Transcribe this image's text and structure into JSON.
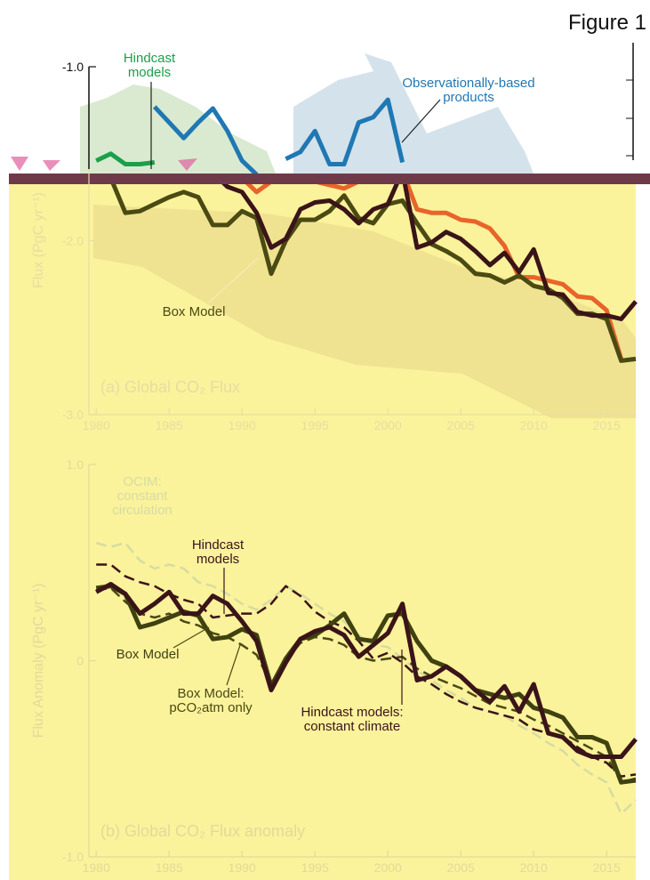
{
  "figure_title": "Figure 1",
  "chart_data": [
    {
      "type": "line",
      "title": "(a) Global CO₂ Flux",
      "y_label": "Flux (PgC yr⁻¹)",
      "x": [
        1980,
        1981,
        1982,
        1983,
        1984,
        1985,
        1986,
        1987,
        1988,
        1989,
        1990,
        1991,
        1992,
        1993,
        1994,
        1995,
        1996,
        1997,
        1998,
        1999,
        2000,
        2001,
        2002,
        2003,
        2004,
        2005,
        2006,
        2007,
        2008,
        2009,
        2010,
        2011,
        2012,
        2013,
        2014,
        2015,
        2016,
        2017
      ],
      "xlim": [
        1979.5,
        2017
      ],
      "xticks": [
        1980,
        1985,
        1990,
        1995,
        2000,
        2005,
        2010,
        2015
      ],
      "ylim": [
        -3,
        -1
      ],
      "yticks": [
        {
          "value": -1,
          "label": "-1.0"
        },
        {
          "value": -2,
          "label": "-2.0"
        },
        {
          "value": -3,
          "label": "-3.0"
        }
      ],
      "series": [
        {
          "name": "Hindcast models",
          "color": "#1aa04a",
          "style": "solid",
          "values": [
            -1.54,
            -1.5,
            -1.56,
            -1.56,
            -1.55,
            null,
            null,
            null,
            null,
            null,
            null,
            null,
            null,
            null,
            null,
            null,
            null,
            null,
            null,
            null,
            null,
            null,
            null,
            null,
            null,
            null,
            null,
            null,
            null,
            null,
            null,
            null,
            null,
            null,
            null,
            null,
            null,
            null
          ]
        },
        {
          "name": "Observationally-based products",
          "color": "#1f78b4",
          "style": "solid",
          "values": [
            null,
            null,
            null,
            null,
            -1.23,
            -1.32,
            -1.41,
            -1.32,
            -1.24,
            -1.37,
            -1.54,
            -1.62,
            null,
            -1.53,
            -1.49,
            -1.37,
            -1.56,
            -1.56,
            -1.32,
            -1.29,
            -1.19,
            -1.55,
            null,
            null,
            null,
            null,
            null,
            null,
            null,
            null,
            null,
            null,
            null,
            null,
            null,
            null,
            null,
            null
          ]
        },
        {
          "color": "#e8642a",
          "style": "solid",
          "values": [
            null,
            null,
            null,
            null,
            null,
            null,
            null,
            null,
            null,
            null,
            -1.64,
            -1.72,
            -1.66,
            -1.62,
            -1.64,
            -1.66,
            -1.68,
            -1.7,
            -1.66,
            -1.62,
            -1.6,
            -1.6,
            -1.82,
            -1.84,
            -1.84,
            -1.88,
            -1.89,
            -1.93,
            -2.03,
            -2.21,
            -2.21,
            -2.23,
            -2.25,
            -2.32,
            -2.33,
            -2.4,
            -2.68,
            null
          ]
        },
        {
          "name": "Box Model",
          "color": "#4a4a12",
          "style": "solid",
          "values": [
            -1.66,
            -1.64,
            -1.84,
            -1.83,
            -1.79,
            -1.75,
            -1.72,
            -1.75,
            -1.91,
            -1.91,
            -1.83,
            -1.87,
            -2.19,
            -2.0,
            -1.88,
            -1.88,
            -1.83,
            -1.74,
            -1.87,
            -1.9,
            -1.79,
            -1.77,
            -1.9,
            -2.02,
            -2.06,
            -2.11,
            -2.19,
            -2.2,
            -2.24,
            -2.2,
            -2.26,
            -2.28,
            -2.33,
            -2.42,
            -2.42,
            -2.45,
            -2.69,
            -2.68
          ]
        },
        {
          "color": "#3a1418",
          "style": "solid",
          "values": [
            -1.61,
            -1.59,
            -1.66,
            -1.64,
            -1.59,
            -1.66,
            -1.61,
            -1.64,
            -1.61,
            -1.69,
            -1.72,
            -1.84,
            -2.04,
            -1.99,
            -1.82,
            -1.78,
            -1.77,
            -1.82,
            -1.9,
            -1.82,
            -1.79,
            -1.6,
            -2.04,
            -2.01,
            -1.95,
            -1.99,
            -2.06,
            -2.14,
            -2.07,
            -2.18,
            -2.05,
            -2.3,
            -2.31,
            -2.41,
            -2.43,
            -2.43,
            -2.45,
            -2.35
          ]
        }
      ]
    },
    {
      "type": "line",
      "title": "(b) Global CO₂ Flux anomaly",
      "y_label": "Flux Anomaly (PgC yr⁻¹)",
      "x": [
        1980,
        1981,
        1982,
        1983,
        1984,
        1985,
        1986,
        1987,
        1988,
        1989,
        1990,
        1991,
        1992,
        1993,
        1994,
        1995,
        1996,
        1997,
        1998,
        1999,
        2000,
        2001,
        2002,
        2003,
        2004,
        2005,
        2006,
        2007,
        2008,
        2009,
        2010,
        2011,
        2012,
        2013,
        2014,
        2015,
        2016,
        2017
      ],
      "xlim": [
        1979.5,
        2017
      ],
      "xticks": [
        1980,
        1985,
        1990,
        1995,
        2000,
        2005,
        2010,
        2015
      ],
      "ylim": [
        -1,
        1
      ],
      "yticks": [
        {
          "value": 1,
          "label": "1.0"
        },
        0,
        {
          "value": -1,
          "label": "-1.0"
        }
      ],
      "series": [
        {
          "name": "OCIM: constant circulation",
          "color": "#d6dca0",
          "style": "dashed",
          "values": [
            0.6,
            0.58,
            0.6,
            0.51,
            0.47,
            0.49,
            0.47,
            0.4,
            0.38,
            0.34,
            0.29,
            0.26,
            0.31,
            0.38,
            0.34,
            0.29,
            0.24,
            0.2,
            0.13,
            0.08,
            0.07,
            0.01,
            -0.05,
            -0.1,
            -0.15,
            -0.19,
            -0.24,
            -0.26,
            -0.28,
            -0.33,
            -0.37,
            -0.42,
            -0.46,
            -0.53,
            -0.58,
            -0.62,
            -0.78,
            -0.71
          ]
        },
        {
          "name": "Box Model: pCO₂atm only",
          "color": "#4a4a12",
          "style": "dashed",
          "values": [
            0.36,
            0.37,
            0.3,
            0.24,
            0.22,
            0.24,
            0.2,
            0.18,
            0.14,
            0.12,
            0.08,
            0.03,
            -0.12,
            0.0,
            0.09,
            0.12,
            0.11,
            0.08,
            0.02,
            0.0,
            0.01,
            0.02,
            -0.04,
            -0.08,
            -0.11,
            -0.14,
            -0.18,
            -0.22,
            -0.24,
            -0.26,
            -0.3,
            -0.33,
            -0.37,
            -0.41,
            -0.45,
            -0.49,
            -0.62,
            -0.6
          ]
        },
        {
          "name": "Hindcast models: constant climate",
          "color": "#3a1418",
          "style": "dashed",
          "values": [
            0.49,
            0.49,
            0.43,
            0.4,
            0.38,
            0.34,
            0.31,
            0.29,
            0.22,
            0.23,
            0.24,
            0.24,
            0.29,
            0.38,
            0.33,
            0.25,
            0.2,
            0.17,
            0.1,
            0.01,
            0.04,
            -0.01,
            -0.08,
            -0.12,
            -0.17,
            -0.21,
            -0.24,
            -0.26,
            -0.28,
            -0.3,
            -0.35,
            -0.37,
            -0.39,
            -0.44,
            -0.49,
            -0.52,
            -0.59,
            -0.58
          ]
        },
        {
          "name": "Box Model",
          "color": "#3f4210",
          "style": "solid",
          "values": [
            0.37,
            0.38,
            0.34,
            0.17,
            0.19,
            0.22,
            0.25,
            0.23,
            0.11,
            0.12,
            0.16,
            0.13,
            -0.13,
            0.01,
            0.11,
            0.13,
            0.18,
            0.24,
            0.11,
            0.1,
            0.23,
            0.24,
            0.1,
            0.0,
            -0.03,
            -0.08,
            -0.15,
            -0.17,
            -0.19,
            -0.17,
            -0.24,
            -0.26,
            -0.29,
            -0.39,
            -0.39,
            -0.42,
            -0.62,
            -0.61
          ]
        },
        {
          "name": "Hindcast models",
          "color": "#3a1418",
          "style": "solid",
          "values": [
            0.35,
            0.39,
            0.34,
            0.24,
            0.29,
            0.35,
            0.24,
            0.24,
            0.33,
            0.29,
            0.2,
            0.1,
            -0.15,
            -0.01,
            0.11,
            0.15,
            0.17,
            0.13,
            0.02,
            0.08,
            0.14,
            0.29,
            -0.1,
            -0.08,
            -0.03,
            -0.08,
            -0.15,
            -0.21,
            -0.13,
            -0.26,
            -0.12,
            -0.37,
            -0.39,
            -0.46,
            -0.49,
            -0.49,
            -0.49,
            -0.4
          ]
        }
      ]
    }
  ]
}
